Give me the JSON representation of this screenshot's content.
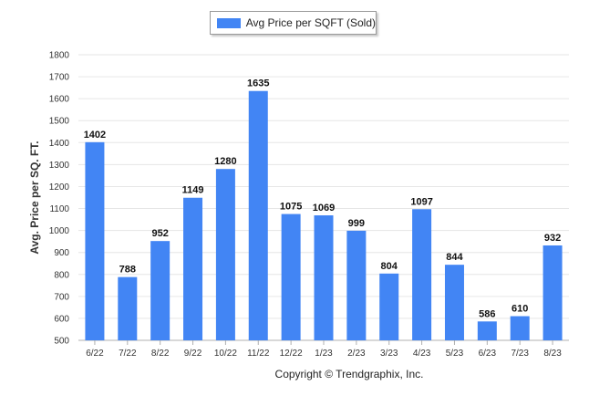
{
  "chart_data": {
    "type": "bar",
    "categories": [
      "6/22",
      "7/22",
      "8/22",
      "9/22",
      "10/22",
      "11/22",
      "12/22",
      "1/23",
      "2/23",
      "3/23",
      "4/23",
      "5/23",
      "6/23",
      "7/23",
      "8/23"
    ],
    "series": [
      {
        "name": "Avg Price per SQFT (Sold)",
        "values": [
          1402,
          788,
          952,
          1149,
          1280,
          1635,
          1075,
          1069,
          999,
          804,
          1097,
          844,
          586,
          610,
          932
        ]
      }
    ],
    "ylabel": "Avg. Price per SQ. FT.",
    "xlabel": "",
    "ylim": [
      500,
      1800
    ],
    "yticks": [
      500,
      600,
      700,
      800,
      900,
      1000,
      1100,
      1200,
      1300,
      1400,
      1500,
      1600,
      1700,
      1800
    ],
    "grid": true,
    "legend_position": "top-center",
    "bar_color": "#4285f4"
  },
  "footer": {
    "copyright": "Copyright © Trendgraphix, Inc."
  }
}
